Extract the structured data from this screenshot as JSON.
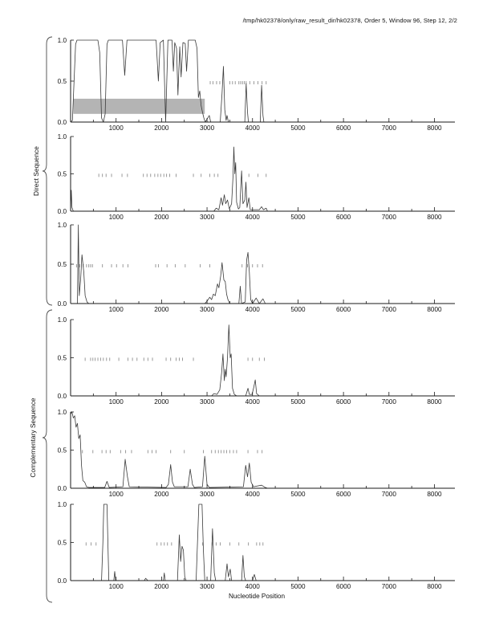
{
  "chart_data": {
    "type": "line",
    "title": "/tmp/hk02378/only/raw_result_dir/hk02378, Order 5, Window 96, Step 12, 2/2",
    "xlabel": "Nucleotide Position",
    "ylabel": "",
    "xlim": [
      0,
      8450
    ],
    "ylim": [
      0.0,
      1.0
    ],
    "grid": false,
    "legend": "none",
    "xtick_labels": [
      "1000",
      "2000",
      "3000",
      "4000",
      "5000",
      "6000",
      "7000",
      "8000"
    ],
    "xticks": [
      1000,
      2000,
      3000,
      4000,
      5000,
      6000,
      7000,
      8000
    ],
    "xtick_minor_step": 500,
    "ytick_labels": [
      "1.0",
      "0.5",
      "0.0"
    ],
    "yticks": [
      1.0,
      0.5,
      0.0
    ],
    "group_labels": [
      {
        "label": "Direct Sequence",
        "panels": [
          0,
          1,
          2
        ]
      },
      {
        "label": "Complementary Sequence",
        "panels": [
          3,
          4,
          5
        ]
      }
    ],
    "colors": {
      "trace": "#3a3a3a",
      "codon_marks": "#8f8f8f",
      "coding_box": "#b4b4b4",
      "axis": "#1a1a1a",
      "brace": "#4a4a4a"
    },
    "panels": [
      {
        "name": "direct-frame-1",
        "boxes": [
          {
            "x0": 60,
            "x1": 2950,
            "y0": 0.1,
            "y1": 0.285
          }
        ],
        "codon_marks": [
          3070,
          3130,
          3210,
          3280,
          3500,
          3560,
          3620,
          3700,
          3740,
          3780,
          3820,
          3860,
          3940,
          4030,
          4120,
          4210,
          4300
        ],
        "trace": [
          [
            0,
            0
          ],
          [
            40,
            0.02
          ],
          [
            80,
            0.55
          ],
          [
            110,
            0.95
          ],
          [
            140,
            1.0
          ],
          [
            600,
            1.0
          ],
          [
            640,
            0.85
          ],
          [
            680,
            0.05
          ],
          [
            720,
            0.0
          ],
          [
            760,
            0.1
          ],
          [
            800,
            0.95
          ],
          [
            830,
            1.0
          ],
          [
            1140,
            1.0
          ],
          [
            1190,
            0.57
          ],
          [
            1240,
            1.0
          ],
          [
            1880,
            1.0
          ],
          [
            1930,
            0.5
          ],
          [
            1970,
            0.97
          ],
          [
            2040,
            1.0
          ],
          [
            2070,
            0.4
          ],
          [
            2090,
            0.0
          ],
          [
            2110,
            0.4
          ],
          [
            2140,
            1.0
          ],
          [
            2230,
            1.0
          ],
          [
            2260,
            0.62
          ],
          [
            2290,
            0.97
          ],
          [
            2330,
            0.9
          ],
          [
            2360,
            0.33
          ],
          [
            2400,
            0.92
          ],
          [
            2430,
            0.55
          ],
          [
            2470,
            0.97
          ],
          [
            2520,
            0.96
          ],
          [
            2550,
            0.62
          ],
          [
            2590,
            1.0
          ],
          [
            2740,
            1.0
          ],
          [
            2780,
            0.9
          ],
          [
            2810,
            0.3
          ],
          [
            2840,
            0.38
          ],
          [
            2870,
            0.2
          ],
          [
            2900,
            0.12
          ],
          [
            2930,
            0.05
          ],
          [
            2960,
            0.0
          ],
          [
            3050,
            0.08
          ],
          [
            3080,
            0.0
          ],
          [
            3290,
            0.0
          ],
          [
            3330,
            0.35
          ],
          [
            3360,
            0.68
          ],
          [
            3390,
            0.15
          ],
          [
            3420,
            0.02
          ],
          [
            3440,
            0.08
          ],
          [
            3470,
            0.0
          ],
          [
            3830,
            0.0
          ],
          [
            3860,
            0.47
          ],
          [
            3890,
            0.12
          ],
          [
            3910,
            0.0
          ],
          [
            4170,
            0.0
          ],
          [
            4200,
            0.45
          ],
          [
            4230,
            0.08
          ],
          [
            4250,
            0.0
          ],
          [
            4330,
            0.0
          ]
        ]
      },
      {
        "name": "direct-frame-2",
        "boxes": [],
        "codon_marks": [
          620,
          700,
          780,
          900,
          1130,
          1250,
          1600,
          1680,
          1760,
          1850,
          1920,
          1980,
          2050,
          2110,
          2180,
          2320,
          2700,
          2870,
          3060,
          3160,
          3240,
          3920,
          4120,
          4300
        ],
        "trace": [
          [
            0,
            0.0
          ],
          [
            15,
            0.28
          ],
          [
            30,
            0.05
          ],
          [
            60,
            0.0
          ],
          [
            3150,
            0.0
          ],
          [
            3200,
            0.04
          ],
          [
            3260,
            0.02
          ],
          [
            3310,
            0.18
          ],
          [
            3340,
            0.08
          ],
          [
            3380,
            0.22
          ],
          [
            3410,
            0.1
          ],
          [
            3450,
            0.15
          ],
          [
            3490,
            0.03
          ],
          [
            3540,
            0.1
          ],
          [
            3570,
            0.45
          ],
          [
            3590,
            0.86
          ],
          [
            3610,
            0.5
          ],
          [
            3630,
            0.65
          ],
          [
            3650,
            0.12
          ],
          [
            3690,
            0.03
          ],
          [
            3720,
            0.05
          ],
          [
            3760,
            0.54
          ],
          [
            3790,
            0.1
          ],
          [
            3830,
            0.15
          ],
          [
            3855,
            0.39
          ],
          [
            3880,
            0.05
          ],
          [
            3920,
            0.18
          ],
          [
            3950,
            0.02
          ],
          [
            4150,
            0.02
          ],
          [
            4200,
            0.06
          ],
          [
            4240,
            0.02
          ],
          [
            4300,
            0.04
          ],
          [
            4330,
            0.0
          ]
        ]
      },
      {
        "name": "direct-frame-3",
        "boxes": [],
        "codon_marks": [
          130,
          200,
          280,
          350,
          400,
          440,
          480,
          700,
          900,
          1010,
          1150,
          1260,
          1870,
          1930,
          2120,
          2300,
          2520,
          2850,
          3060,
          3770,
          3890,
          4000,
          4110,
          4220
        ],
        "trace": [
          [
            0,
            0.0
          ],
          [
            150,
            0.0
          ],
          [
            170,
            1.0
          ],
          [
            190,
            0.1
          ],
          [
            220,
            0.3
          ],
          [
            250,
            0.62
          ],
          [
            290,
            0.4
          ],
          [
            320,
            0.1
          ],
          [
            360,
            0.02
          ],
          [
            400,
            0.0
          ],
          [
            2950,
            0.0
          ],
          [
            3000,
            0.03
          ],
          [
            3060,
            0.08
          ],
          [
            3100,
            0.05
          ],
          [
            3140,
            0.12
          ],
          [
            3180,
            0.1
          ],
          [
            3230,
            0.25
          ],
          [
            3260,
            0.2
          ],
          [
            3300,
            0.35
          ],
          [
            3330,
            0.52
          ],
          [
            3370,
            0.3
          ],
          [
            3400,
            0.28
          ],
          [
            3430,
            0.12
          ],
          [
            3460,
            0.05
          ],
          [
            3500,
            0.0
          ],
          [
            3700,
            0.0
          ],
          [
            3730,
            0.22
          ],
          [
            3760,
            0.0
          ],
          [
            3840,
            0.02
          ],
          [
            3870,
            0.55
          ],
          [
            3900,
            0.65
          ],
          [
            3930,
            0.4
          ],
          [
            3960,
            0.05
          ],
          [
            4000,
            0.0
          ],
          [
            4080,
            0.07
          ],
          [
            4150,
            0.0
          ],
          [
            4230,
            0.06
          ],
          [
            4280,
            0.0
          ],
          [
            4330,
            0.0
          ]
        ]
      },
      {
        "name": "complementary-frame-1",
        "boxes": [],
        "codon_marks": [
          320,
          440,
          490,
          540,
          600,
          660,
          720,
          790,
          860,
          1060,
          1260,
          1360,
          1460,
          1610,
          1700,
          1800,
          2100,
          2200,
          2320,
          2390,
          2460,
          2700,
          3900,
          4000,
          4150,
          4260
        ],
        "trace": [
          [
            0,
            0.0
          ],
          [
            3100,
            0.0
          ],
          [
            3150,
            0.03
          ],
          [
            3220,
            0.02
          ],
          [
            3280,
            0.08
          ],
          [
            3320,
            0.3
          ],
          [
            3350,
            0.55
          ],
          [
            3380,
            0.2
          ],
          [
            3400,
            0.35
          ],
          [
            3420,
            0.25
          ],
          [
            3450,
            0.5
          ],
          [
            3480,
            0.93
          ],
          [
            3510,
            0.5
          ],
          [
            3530,
            0.55
          ],
          [
            3560,
            0.1
          ],
          [
            3600,
            0.02
          ],
          [
            3650,
            0.0
          ],
          [
            3850,
            0.0
          ],
          [
            3900,
            0.1
          ],
          [
            3930,
            0.02
          ],
          [
            3990,
            0.02
          ],
          [
            4030,
            0.12
          ],
          [
            4060,
            0.21
          ],
          [
            4090,
            0.03
          ],
          [
            4150,
            0.0
          ],
          [
            4330,
            0.0
          ]
        ]
      },
      {
        "name": "complementary-frame-2",
        "boxes": [],
        "codon_marks": [
          260,
          490,
          690,
          780,
          870,
          1100,
          1210,
          1340,
          1700,
          1790,
          1880,
          2200,
          2500,
          2920,
          3100,
          3180,
          3250,
          3310,
          3370,
          3430,
          3500,
          3580,
          3650,
          3900,
          4110,
          4210
        ],
        "trace": [
          [
            0,
            0.97
          ],
          [
            30,
            1.0
          ],
          [
            60,
            0.92
          ],
          [
            90,
            0.95
          ],
          [
            120,
            0.8
          ],
          [
            150,
            0.85
          ],
          [
            180,
            0.65
          ],
          [
            210,
            0.7
          ],
          [
            240,
            0.3
          ],
          [
            270,
            0.1
          ],
          [
            310,
            0.08
          ],
          [
            350,
            0.02
          ],
          [
            400,
            0.01
          ],
          [
            750,
            0.01
          ],
          [
            800,
            0.09
          ],
          [
            850,
            0.01
          ],
          [
            1150,
            0.02
          ],
          [
            1200,
            0.38
          ],
          [
            1250,
            0.15
          ],
          [
            1290,
            0.02
          ],
          [
            2100,
            0.01
          ],
          [
            2150,
            0.05
          ],
          [
            2200,
            0.31
          ],
          [
            2240,
            0.08
          ],
          [
            2280,
            0.02
          ],
          [
            2580,
            0.02
          ],
          [
            2630,
            0.25
          ],
          [
            2680,
            0.05
          ],
          [
            2720,
            0.01
          ],
          [
            2900,
            0.02
          ],
          [
            2950,
            0.42
          ],
          [
            3000,
            0.05
          ],
          [
            3050,
            0.01
          ],
          [
            3800,
            0.02
          ],
          [
            3850,
            0.3
          ],
          [
            3890,
            0.15
          ],
          [
            3930,
            0.33
          ],
          [
            3970,
            0.08
          ],
          [
            4020,
            0.02
          ],
          [
            4200,
            0.04
          ],
          [
            4280,
            0.01
          ],
          [
            4330,
            0.0
          ]
        ]
      },
      {
        "name": "complementary-frame-3",
        "boxes": [],
        "codon_marks": [
          340,
          450,
          560,
          1900,
          1990,
          2060,
          2130,
          2220,
          2900,
          3110,
          3200,
          3290,
          3500,
          3700,
          3910,
          4090,
          4160,
          4230
        ],
        "trace": [
          [
            0,
            0.0
          ],
          [
            680,
            0.0
          ],
          [
            710,
            0.5
          ],
          [
            730,
            1.0
          ],
          [
            800,
            1.0
          ],
          [
            820,
            0.5
          ],
          [
            840,
            0.0
          ],
          [
            950,
            0.0
          ],
          [
            970,
            0.12
          ],
          [
            990,
            0.0
          ],
          [
            1620,
            0.0
          ],
          [
            1650,
            0.03
          ],
          [
            1700,
            0.0
          ],
          [
            2040,
            0.0
          ],
          [
            2060,
            0.1
          ],
          [
            2080,
            0.0
          ],
          [
            2350,
            0.0
          ],
          [
            2390,
            0.6
          ],
          [
            2420,
            0.25
          ],
          [
            2450,
            0.45
          ],
          [
            2480,
            0.4
          ],
          [
            2510,
            0.05
          ],
          [
            2540,
            0.0
          ],
          [
            2760,
            0.0
          ],
          [
            2790,
            0.5
          ],
          [
            2820,
            1.0
          ],
          [
            2890,
            1.0
          ],
          [
            2920,
            0.4
          ],
          [
            2950,
            0.0
          ],
          [
            3080,
            0.0
          ],
          [
            3120,
            0.68
          ],
          [
            3160,
            0.1
          ],
          [
            3190,
            0.0
          ],
          [
            3400,
            0.0
          ],
          [
            3440,
            0.22
          ],
          [
            3470,
            0.05
          ],
          [
            3510,
            0.15
          ],
          [
            3540,
            0.0
          ],
          [
            3760,
            0.0
          ],
          [
            3790,
            0.33
          ],
          [
            3820,
            0.05
          ],
          [
            3850,
            0.0
          ],
          [
            4000,
            0.0
          ],
          [
            4040,
            0.08
          ],
          [
            4080,
            0.0
          ],
          [
            4330,
            0.0
          ]
        ]
      }
    ]
  }
}
